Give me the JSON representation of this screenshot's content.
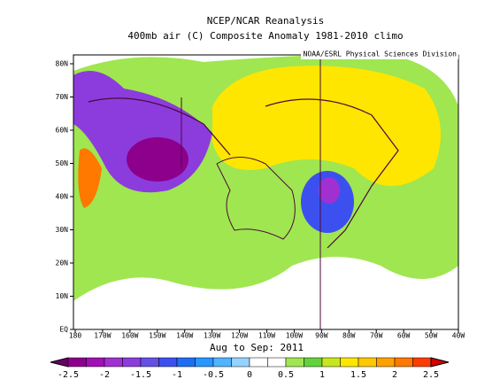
{
  "header": {
    "title": "NCEP/NCAR Reanalysis",
    "subtitle": "400mb air (C) Composite Anomaly 1981-2010 climo"
  },
  "credit": "NOAA/ESRL Physical Sciences Division",
  "map": {
    "x_labels": [
      "180",
      "170W",
      "160W",
      "150W",
      "140W",
      "130W",
      "120W",
      "110W",
      "100W",
      "90W",
      "80W",
      "70W",
      "60W",
      "50W",
      "40W"
    ],
    "y_labels": [
      "EQ",
      "10N",
      "20N",
      "30N",
      "40N",
      "50N",
      "60N",
      "70N",
      "80N"
    ]
  },
  "period": "Aug to Sep: 2011",
  "colorbar": {
    "labels": [
      "-2.5",
      "-2",
      "-1.5",
      "-1",
      "-0.5",
      "0",
      "0.5",
      "1",
      "1.5",
      "2",
      "2.5"
    ],
    "colors": [
      "#6a006a",
      "#8c008c",
      "#a010b4",
      "#a030d0",
      "#8c3cdc",
      "#6450e6",
      "#3c50f0",
      "#1e6ef5",
      "#2896ff",
      "#50b4ff",
      "#96d2ff",
      "#ffffff",
      "#ffffff",
      "#a0e650",
      "#64d23c",
      "#c8e61e",
      "#ffe600",
      "#ffc800",
      "#ffa000",
      "#ff7800",
      "#ff3c00",
      "#d20000"
    ]
  }
}
